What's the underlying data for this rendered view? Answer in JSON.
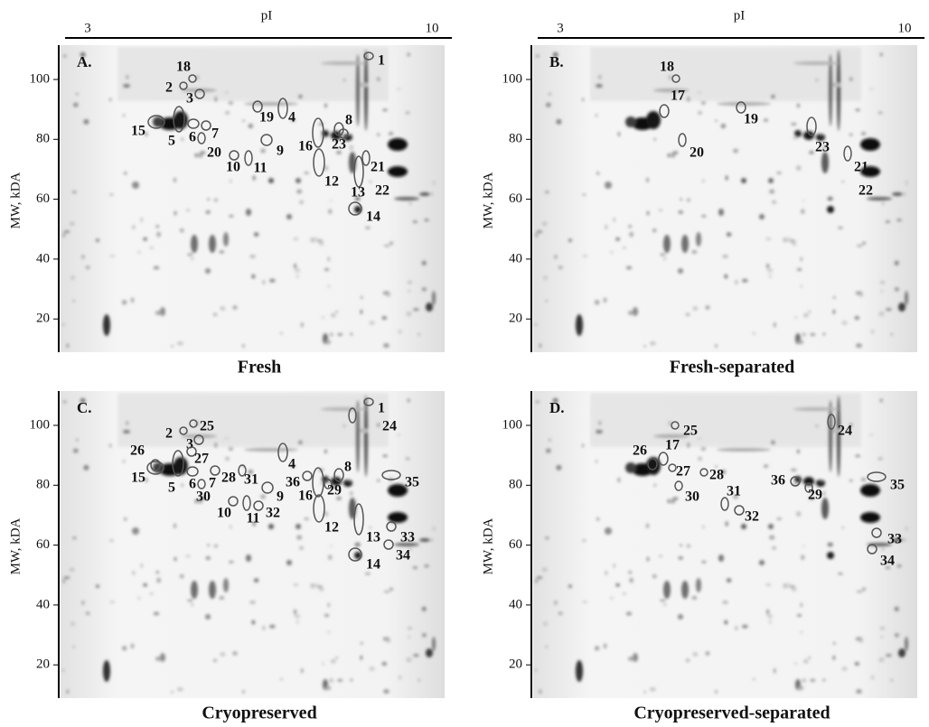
{
  "panels": [
    {
      "letter": "A.",
      "caption": "Fresh",
      "x_axis": {
        "label": "pI",
        "ticks": [
          "3",
          "10"
        ]
      },
      "y_axis": {
        "label": "MW, kDA",
        "ticks": [
          "100",
          "80",
          "60",
          "40",
          "20"
        ]
      },
      "spots": [
        "1",
        "18",
        "2",
        "3",
        "19",
        "4",
        "15",
        "5",
        "6",
        "7",
        "8",
        "16",
        "23",
        "20",
        "9",
        "10",
        "11",
        "12",
        "21",
        "13",
        "22",
        "14"
      ]
    },
    {
      "letter": "B.",
      "caption": "Fresh-separated",
      "x_axis": {
        "label": "pI",
        "ticks": [
          "3",
          "10"
        ]
      },
      "y_axis": {
        "label": "MW, kDA",
        "ticks": [
          "100",
          "80",
          "60",
          "40",
          "20"
        ]
      },
      "spots": [
        "18",
        "17",
        "19",
        "23",
        "20",
        "21",
        "22"
      ]
    },
    {
      "letter": "C.",
      "caption": "Cryopreserved",
      "y_axis": {
        "label": "MW, kDA",
        "ticks": [
          "100",
          "80",
          "60",
          "40",
          "20"
        ]
      },
      "spots": [
        "1",
        "24",
        "2",
        "25",
        "3",
        "26",
        "27",
        "4",
        "15",
        "5",
        "6",
        "7",
        "28",
        "31",
        "36",
        "8",
        "35",
        "30",
        "9",
        "16",
        "29",
        "10",
        "11",
        "32",
        "12",
        "13",
        "33",
        "34",
        "14"
      ]
    },
    {
      "letter": "D.",
      "caption": "Cryopreserved-separated",
      "y_axis": {
        "label": "MW, kDA",
        "ticks": [
          "100",
          "80",
          "60",
          "40",
          "20"
        ]
      },
      "spots": [
        "25",
        "24",
        "26",
        "17",
        "27",
        "28",
        "36",
        "35",
        "30",
        "31",
        "29",
        "32",
        "33",
        "34"
      ]
    }
  ]
}
